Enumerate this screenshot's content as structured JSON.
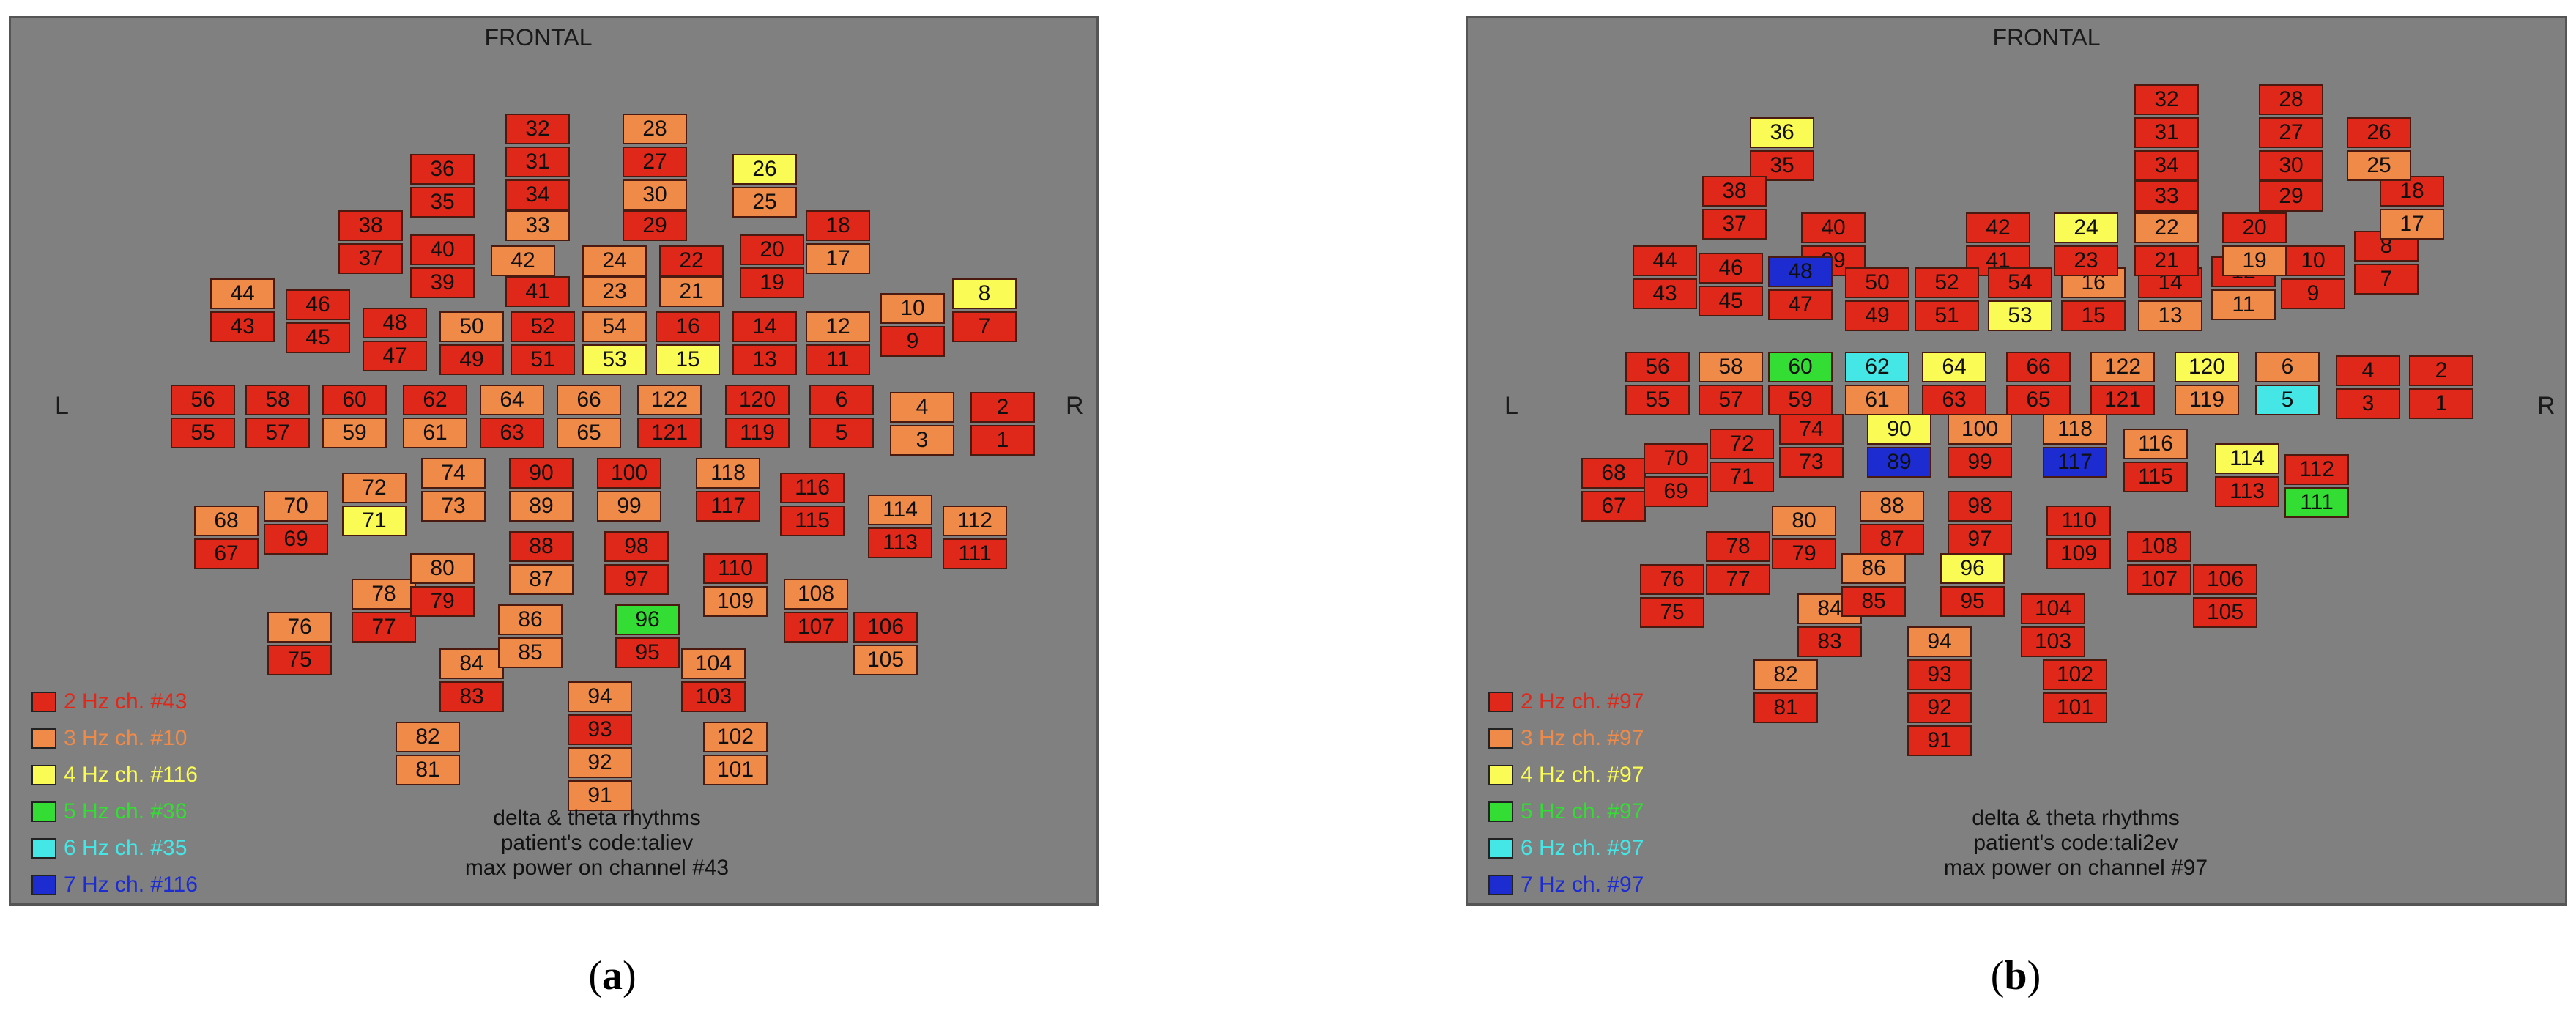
{
  "panels": [
    {
      "id": "a",
      "sublabel_open": "(",
      "sublabel_letter": "a",
      "sublabel_close": ")",
      "frontal": "FRONTAL",
      "left": "L",
      "right": "R",
      "legend": [
        {
          "text": "2 Hz ch. #43",
          "color": "#e0281a"
        },
        {
          "text": "3 Hz ch. #10",
          "color": "#f08a48"
        },
        {
          "text": "4 Hz ch. #116",
          "color": "#fbfb55"
        },
        {
          "text": "5 Hz ch. #36",
          "color": "#33dd33"
        },
        {
          "text": "6 Hz ch. #35",
          "color": "#44e6e6"
        },
        {
          "text": "7 Hz ch. #116",
          "color": "#1c2cd0"
        }
      ],
      "caption": [
        "delta & theta rhythms",
        "patient's code:taliev",
        "max power on channel #43"
      ],
      "channels": {
        "1": "2",
        "2": "2",
        "3": "3",
        "4": "3",
        "5": "2",
        "6": "2",
        "7": "2",
        "8": "4",
        "9": "2",
        "10": "3",
        "11": "2",
        "12": "3",
        "13": "2",
        "14": "2",
        "15": "4",
        "16": "2",
        "17": "3",
        "18": "2",
        "19": "2",
        "20": "2",
        "21": "3",
        "22": "2",
        "23": "3",
        "24": "3",
        "25": "3",
        "26": "4",
        "27": "2",
        "28": "3",
        "29": "2",
        "30": "3",
        "31": "2",
        "32": "2",
        "33": "3",
        "34": "2",
        "35": "2",
        "36": "2",
        "37": "2",
        "38": "2",
        "39": "2",
        "40": "2",
        "41": "2",
        "42": "3",
        "43": "2",
        "44": "3",
        "45": "2",
        "46": "2",
        "47": "2",
        "48": "2",
        "49": "2",
        "50": "3",
        "51": "2",
        "52": "2",
        "53": "4",
        "54": "3",
        "55": "2",
        "56": "2",
        "57": "2",
        "58": "2",
        "59": "3",
        "60": "2",
        "61": "3",
        "62": "2",
        "63": "2",
        "64": "3",
        "65": "3",
        "66": "3",
        "67": "2",
        "68": "3",
        "69": "2",
        "70": "3",
        "71": "4",
        "72": "3",
        "73": "3",
        "74": "3",
        "75": "2",
        "76": "3",
        "77": "2",
        "78": "3",
        "79": "2",
        "80": "3",
        "81": "3",
        "82": "3",
        "83": "2",
        "84": "3",
        "85": "3",
        "86": "3",
        "87": "3",
        "88": "2",
        "89": "3",
        "90": "2",
        "91": "3",
        "92": "3",
        "93": "2",
        "94": "3",
        "95": "2",
        "96": "5",
        "97": "2",
        "98": "2",
        "99": "3",
        "100": "2",
        "101": "3",
        "102": "3",
        "103": "2",
        "104": "3",
        "105": "3",
        "106": "2",
        "107": "2",
        "108": "3",
        "109": "3",
        "110": "2",
        "111": "2",
        "112": "3",
        "113": "2",
        "114": "3",
        "115": "2",
        "116": "2",
        "117": "2",
        "118": "3",
        "119": "2",
        "120": "2",
        "121": "2",
        "122": "3"
      }
    },
    {
      "id": "b",
      "sublabel_open": "(",
      "sublabel_letter": "b",
      "sublabel_close": ")",
      "frontal": "FRONTAL",
      "left": "L",
      "right": "R",
      "legend": [
        {
          "text": "2 Hz ch. #97",
          "color": "#e0281a"
        },
        {
          "text": "3 Hz ch. #97",
          "color": "#f08a48"
        },
        {
          "text": "4 Hz ch. #97",
          "color": "#fbfb55"
        },
        {
          "text": "5 Hz ch. #97",
          "color": "#33dd33"
        },
        {
          "text": "6 Hz ch. #97",
          "color": "#44e6e6"
        },
        {
          "text": "7 Hz ch. #97",
          "color": "#1c2cd0"
        }
      ],
      "caption": [
        "delta & theta rhythms",
        "patient's code:tali2ev",
        "max power on channel #97"
      ],
      "channels": {
        "1": "2",
        "2": "2",
        "3": "2",
        "4": "2",
        "5": "6",
        "6": "3",
        "7": "2",
        "8": "2",
        "9": "2",
        "10": "2",
        "11": "3",
        "12": "2",
        "13": "3",
        "14": "2",
        "15": "2",
        "16": "3",
        "17": "3",
        "18": "2",
        "19": "3",
        "20": "2",
        "21": "2",
        "22": "3",
        "23": "2",
        "24": "4",
        "25": "3",
        "26": "2",
        "27": "2",
        "28": "2",
        "29": "2",
        "30": "2",
        "31": "2",
        "32": "2",
        "33": "2",
        "34": "2",
        "35": "2",
        "36": "4",
        "37": "2",
        "38": "2",
        "39": "2",
        "40": "2",
        "41": "2",
        "42": "2",
        "43": "2",
        "44": "2",
        "45": "2",
        "46": "2",
        "47": "2",
        "48": "7",
        "49": "2",
        "50": "2",
        "51": "2",
        "52": "2",
        "53": "4",
        "54": "2",
        "55": "2",
        "56": "2",
        "57": "2",
        "58": "3",
        "59": "2",
        "60": "5",
        "61": "3",
        "62": "6",
        "63": "2",
        "64": "4",
        "65": "2",
        "66": "2",
        "67": "2",
        "68": "2",
        "69": "2",
        "70": "2",
        "71": "2",
        "72": "2",
        "73": "2",
        "74": "2",
        "75": "2",
        "76": "2",
        "77": "2",
        "78": "2",
        "79": "2",
        "80": "3",
        "81": "2",
        "82": "3",
        "83": "2",
        "84": "3",
        "85": "2",
        "86": "3",
        "87": "2",
        "88": "3",
        "89": "7",
        "90": "4",
        "91": "2",
        "92": "2",
        "93": "2",
        "94": "3",
        "95": "2",
        "96": "4",
        "97": "2",
        "98": "2",
        "99": "2",
        "100": "3",
        "101": "2",
        "102": "2",
        "103": "2",
        "104": "2",
        "105": "2",
        "106": "2",
        "107": "2",
        "108": "2",
        "109": "2",
        "110": "2",
        "111": "5",
        "112": "2",
        "113": "2",
        "114": "4",
        "115": "2",
        "116": "3",
        "117": "7",
        "118": "3",
        "119": "3",
        "120": "4",
        "121": "2",
        "122": "3"
      }
    }
  ]
}
